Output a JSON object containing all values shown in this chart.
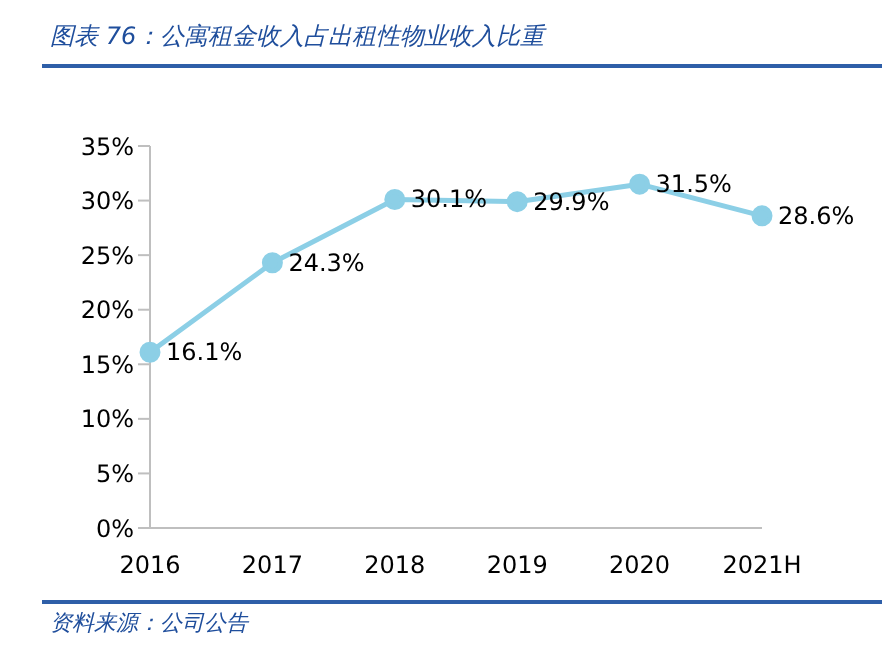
{
  "chart_data": {
    "type": "line",
    "title": "图表 76：公寓租金收入占出租性物业收入比重",
    "annotations": [
      "资料来源：公司公告"
    ],
    "categories": [
      "2016",
      "2017",
      "2018",
      "2019",
      "2020",
      "2021H"
    ],
    "series": [
      {
        "color": "#8ccfe6",
        "values": [
          16.1,
          24.3,
          30.1,
          29.9,
          31.5,
          28.6
        ],
        "value_labels": [
          "16.1%",
          "24.3%",
          "30.1%",
          "29.9%",
          "31.5%",
          "28.6%"
        ]
      }
    ],
    "ylim": [
      0,
      35
    ],
    "yticks": [
      {
        "value": 0,
        "label": "0%"
      },
      {
        "value": 5,
        "label": "5%"
      },
      {
        "value": 10,
        "label": "10%"
      },
      {
        "value": 15,
        "label": "15%"
      },
      {
        "value": 20,
        "label": "20%"
      },
      {
        "value": 25,
        "label": "25%"
      },
      {
        "value": 30,
        "label": "30%"
      },
      {
        "value": 35,
        "label": "35%"
      }
    ],
    "marker": "circle",
    "line_style": "solid"
  }
}
